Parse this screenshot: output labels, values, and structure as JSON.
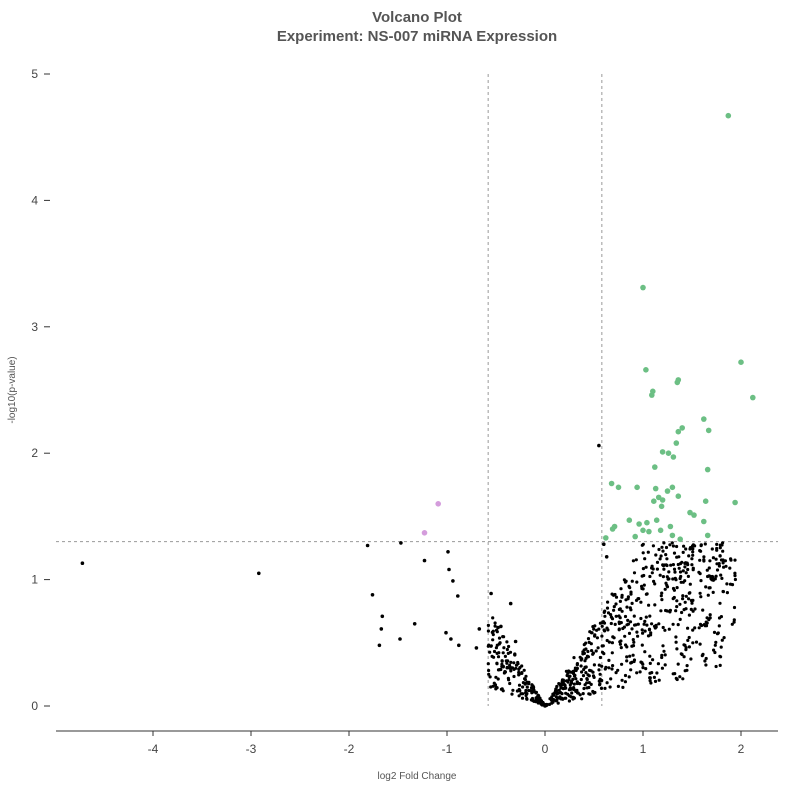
{
  "chart_data": {
    "type": "scatter",
    "title": "Volcano Plot",
    "subtitle": "Experiment: NS-007 miRNA Expression",
    "xlabel": "log2 Fold Change",
    "ylabel": "-log10(p-value)",
    "xlim": [
      -5,
      2.4
    ],
    "ylim": [
      -0.2,
      5.1
    ],
    "xticks": [
      -4,
      -3,
      -2,
      -1,
      0,
      1,
      2
    ],
    "yticks": [
      0,
      1,
      2,
      3,
      4,
      5
    ],
    "thresholds": {
      "fold_change": [
        -0.58,
        0.58
      ],
      "p_value_log10": 1.3
    },
    "grid": false,
    "colors": {
      "up_significant": "#6cbf84",
      "down_significant": "#d49cdc",
      "not_significant": "#000000",
      "threshold_line": "#999999"
    },
    "series": [
      {
        "values": [
          [
            1.87,
            4.67
          ],
          [
            1.0,
            3.31
          ],
          [
            2.0,
            2.72
          ],
          [
            2.12,
            2.44
          ],
          [
            1.03,
            2.66
          ],
          [
            1.36,
            2.58
          ],
          [
            1.35,
            2.56
          ],
          [
            1.1,
            2.49
          ],
          [
            1.09,
            2.46
          ],
          [
            1.62,
            2.27
          ],
          [
            1.4,
            2.2
          ],
          [
            1.36,
            2.17
          ],
          [
            1.67,
            2.18
          ],
          [
            1.34,
            2.08
          ],
          [
            1.26,
            2.0
          ],
          [
            1.31,
            1.97
          ],
          [
            1.12,
            1.89
          ],
          [
            1.66,
            1.87
          ],
          [
            1.2,
            2.01
          ],
          [
            0.68,
            1.76
          ],
          [
            0.75,
            1.73
          ],
          [
            0.94,
            1.73
          ],
          [
            1.13,
            1.72
          ],
          [
            1.25,
            1.7
          ],
          [
            1.3,
            1.73
          ],
          [
            1.36,
            1.66
          ],
          [
            1.64,
            1.62
          ],
          [
            1.94,
            1.61
          ],
          [
            1.16,
            1.65
          ],
          [
            1.2,
            1.63
          ],
          [
            1.11,
            1.62
          ],
          [
            1.19,
            1.58
          ],
          [
            1.48,
            1.53
          ],
          [
            1.52,
            1.51
          ],
          [
            0.86,
            1.47
          ],
          [
            0.96,
            1.44
          ],
          [
            1.04,
            1.45
          ],
          [
            1.14,
            1.47
          ],
          [
            1.28,
            1.42
          ],
          [
            1.62,
            1.46
          ],
          [
            0.71,
            1.42
          ],
          [
            0.69,
            1.4
          ],
          [
            1.0,
            1.39
          ],
          [
            1.06,
            1.38
          ],
          [
            1.18,
            1.39
          ],
          [
            0.92,
            1.34
          ],
          [
            1.3,
            1.35
          ],
          [
            1.66,
            1.35
          ],
          [
            0.62,
            1.33
          ],
          [
            1.38,
            1.32
          ]
        ]
      },
      {
        "values": [
          [
            -1.09,
            1.6
          ],
          [
            -1.23,
            1.37
          ]
        ]
      },
      {
        "values": [
          [
            -4.72,
            1.13
          ],
          [
            -2.92,
            1.05
          ],
          [
            -1.81,
            1.27
          ],
          [
            -1.47,
            1.29
          ],
          [
            -1.23,
            1.15
          ],
          [
            -0.99,
            1.22
          ],
          [
            -0.98,
            1.08
          ],
          [
            -0.94,
            0.99
          ],
          [
            -0.89,
            0.87
          ],
          [
            -1.76,
            0.88
          ],
          [
            -1.66,
            0.71
          ],
          [
            -1.67,
            0.61
          ],
          [
            -1.69,
            0.48
          ],
          [
            -1.48,
            0.53
          ],
          [
            -1.33,
            0.65
          ],
          [
            -1.01,
            0.58
          ],
          [
            -0.96,
            0.53
          ],
          [
            -0.88,
            0.48
          ],
          [
            -0.7,
            0.46
          ],
          [
            -0.67,
            0.61
          ],
          [
            -0.55,
            0.89
          ],
          [
            -0.35,
            0.81
          ],
          [
            -0.48,
            0.62
          ],
          [
            -0.45,
            0.63
          ],
          [
            -0.3,
            0.51
          ],
          [
            0.55,
            2.06
          ],
          [
            0.63,
            1.18
          ],
          [
            0.6,
            1.28
          ]
        ]
      }
    ],
    "noise_cloud": {
      "count": 850,
      "x_range": [
        -0.58,
        1.95
      ],
      "y_max": 1.3,
      "seed": 7
    }
  }
}
